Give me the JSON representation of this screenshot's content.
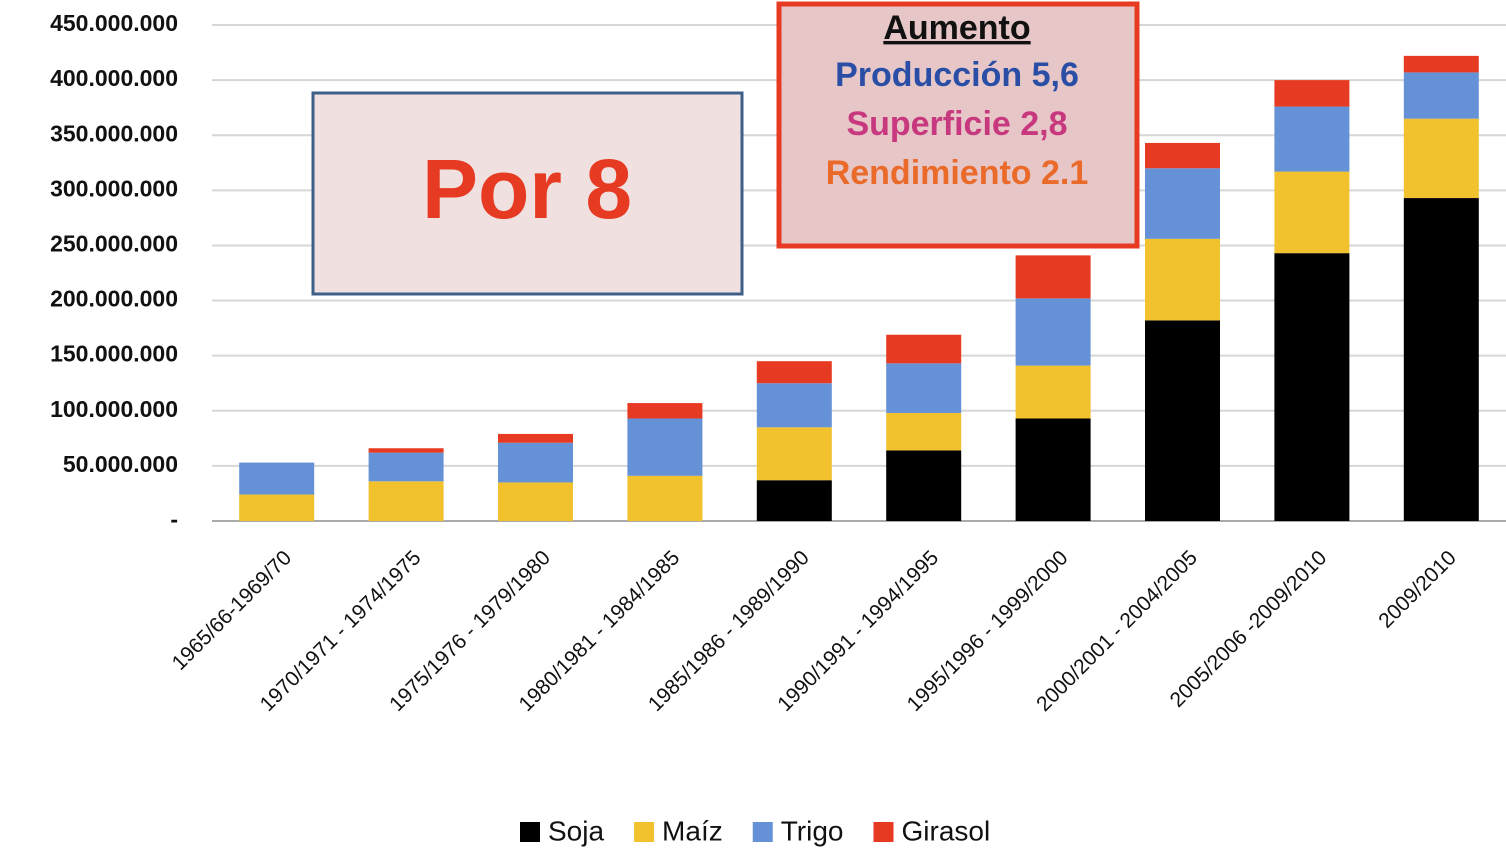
{
  "chart_data": {
    "type": "stacked_bar",
    "categories": [
      "1965/66-1969/70",
      "1970/1971 - 1974/1975",
      "1975/1976 - 1979/1980",
      "1980/1981 - 1984/1985",
      "1985/1986 - 1989/1990",
      "1990/1991 - 1994/1995",
      "1995/1996 - 1999/2000",
      "2000/2001 - 2004/2005",
      "2005/2006 -2009/2010",
      "2009/2010"
    ],
    "series": [
      {
        "name": "Soja",
        "color": "#000000",
        "values": [
          0,
          0,
          0,
          0,
          37000000,
          64000000,
          93000000,
          182000000,
          243000000,
          293000000
        ]
      },
      {
        "name": "Maíz",
        "color": "#f2c12e",
        "values": [
          24000000,
          36000000,
          35000000,
          41000000,
          48000000,
          34000000,
          48000000,
          74000000,
          74000000,
          72000000
        ]
      },
      {
        "name": "Trigo",
        "color": "#6592d6",
        "values": [
          29000000,
          26000000,
          36000000,
          52000000,
          40000000,
          45000000,
          61000000,
          64000000,
          59000000,
          42000000
        ]
      },
      {
        "name": "Girasol",
        "color": "#e63b22",
        "values": [
          0,
          4000000,
          8000000,
          14000000,
          20000000,
          26000000,
          39000000,
          23000000,
          24000000,
          15000000
        ]
      }
    ],
    "ylim": [
      0,
      450000000
    ],
    "yticks": [
      {
        "value": 0,
        "label": "-"
      },
      {
        "value": 50000000,
        "label": "50.000.000"
      },
      {
        "value": 100000000,
        "label": "100.000.000"
      },
      {
        "value": 150000000,
        "label": "150.000.000"
      },
      {
        "value": 200000000,
        "label": "200.000.000"
      },
      {
        "value": 250000000,
        "label": "250.000.000"
      },
      {
        "value": 300000000,
        "label": "300.000.000"
      },
      {
        "value": 350000000,
        "label": "350.000.000"
      },
      {
        "value": 400000000,
        "label": "400.000.000"
      },
      {
        "value": 450000000,
        "label": "450.000.000"
      }
    ],
    "grid": true,
    "legend": "bottom",
    "annotations": {
      "multiplier": "Por 8",
      "increase_title": "Aumento",
      "production": "Producción 5,6",
      "surface": "Superficie 2,8",
      "yield": "Rendimiento 2.1"
    }
  }
}
